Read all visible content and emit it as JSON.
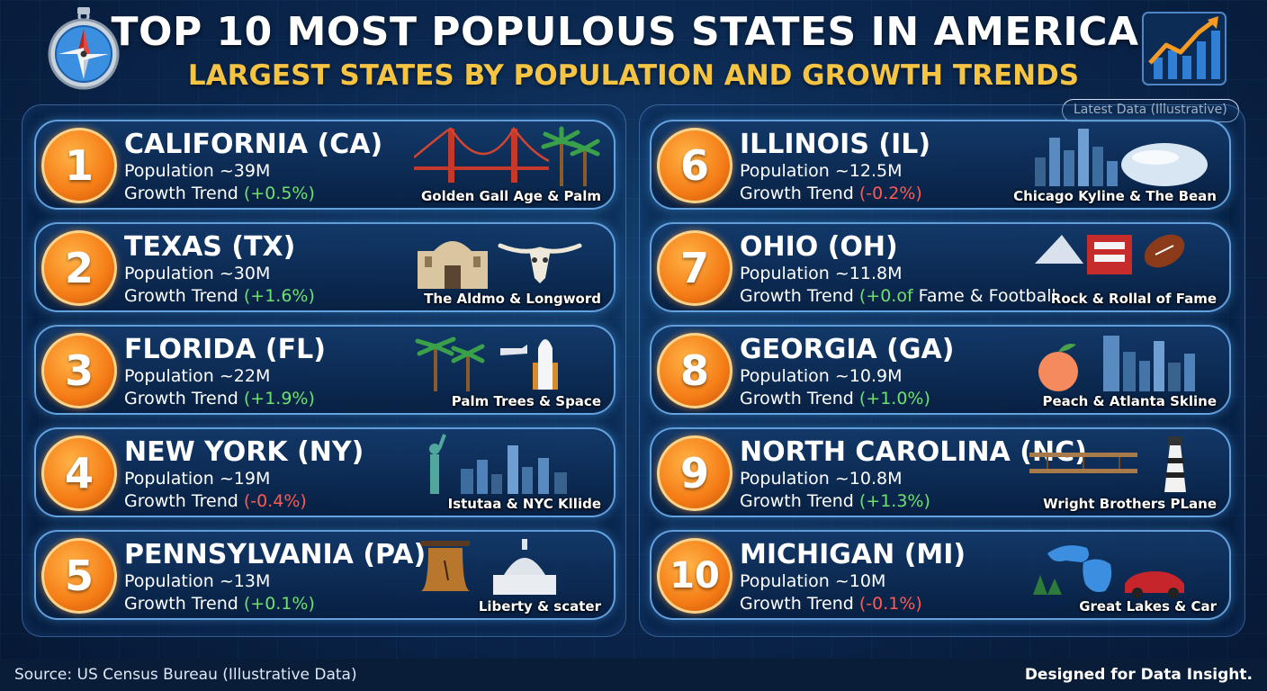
{
  "header": {
    "title": "TOP 10 MOST POPULOUS STATES IN AMERICA:",
    "subtitle": "LARGEST STATES BY POPULATION AND GROWTH TRENDS",
    "badge": "Latest Data (Illustrative)"
  },
  "growth_label": "Growth Trend",
  "colors": {
    "subtitle": "#f6c443",
    "growth_up": "#6fe06f",
    "growth_down": "#ff5a50",
    "rank_circle": "#f57c16",
    "background": "#0b2850"
  },
  "states": [
    {
      "rank": "1",
      "name": "CALIFORNIA (CA)",
      "population": "Population ~39M",
      "growth": "(+0.5%)",
      "direction": "up",
      "caption": "Golden Gall Age & Palm",
      "icon": "golden-gate-palm-icon"
    },
    {
      "rank": "2",
      "name": "TEXAS (TX)",
      "population": "Population ~30M",
      "growth": "(+1.6%)",
      "direction": "up",
      "caption": "The Aldmo & Longword",
      "icon": "alamo-longhorn-icon"
    },
    {
      "rank": "3",
      "name": "FLORIDA (FL)",
      "population": "Population ~22M",
      "growth": "(+1.9%)",
      "direction": "up",
      "caption": "Palm Trees & Space",
      "icon": "palm-shuttle-icon"
    },
    {
      "rank": "4",
      "name": "NEW YORK (NY)",
      "population": "Population ~19M",
      "growth": "(-0.4%)",
      "direction": "down",
      "caption": "Istutaa & NYC Kllide",
      "icon": "liberty-skyline-icon"
    },
    {
      "rank": "5",
      "name": "PENNSYLVANIA (PA)",
      "population": "Population ~13M",
      "growth": "(+0.1%)",
      "direction": "up",
      "caption": "Liberty & scater",
      "icon": "liberty-bell-capitol-icon"
    },
    {
      "rank": "6",
      "name": "ILLINOIS (IL)",
      "population": "Population ~12.5M",
      "growth": "(-0.2%)",
      "direction": "down",
      "caption": "Chicago Kyline & The Bean",
      "icon": "chicago-bean-icon"
    },
    {
      "rank": "7",
      "name": "OHIO (OH)",
      "population": "Population ~11.8M",
      "growth": "(+0.of",
      "growth_tail": " Fame & Football",
      "direction": "up",
      "caption": "Rock & Rollal of Fame",
      "icon": "rock-hall-football-icon"
    },
    {
      "rank": "8",
      "name": "GEORGIA (GA)",
      "population": "Population ~10.9M",
      "growth": "(+1.0%)",
      "direction": "up",
      "caption": "Peach & Atlanta Skline",
      "icon": "peach-skyline-icon"
    },
    {
      "rank": "9",
      "name": "NORTH CAROLINA (NC)",
      "population": "Population ~10.8M",
      "growth": "(+1.3%)",
      "direction": "up",
      "caption": "Wright Brothers PLane",
      "icon": "biplane-lighthouse-icon"
    },
    {
      "rank": "10",
      "name": "MICHIGAN (MI)",
      "population": "Population ~10M",
      "growth": "(-0.1%)",
      "direction": "down",
      "caption": "Great Lakes & Car",
      "icon": "great-lakes-car-icon"
    }
  ],
  "footer": {
    "source": "Source: US Census Bureau (Illustrative Data)",
    "designed": "Designed for Data Insight."
  }
}
